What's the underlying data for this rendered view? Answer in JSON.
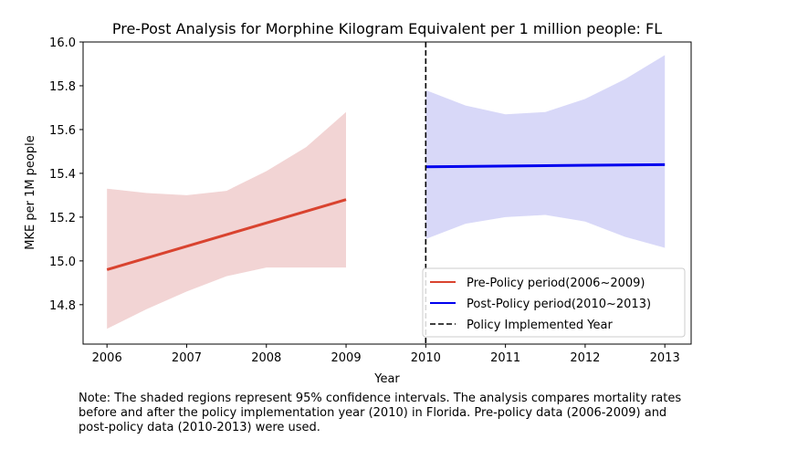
{
  "chart_data": {
    "type": "line",
    "title": "Pre-Post Analysis for Morphine Kilogram Equivalent per 1 million people: FL",
    "xlabel": "Year",
    "ylabel": "MKE per 1M people",
    "xlim": [
      2005.7,
      2013.33
    ],
    "ylim": [
      14.62,
      16.0
    ],
    "x_ticks": [
      "2006",
      "2007",
      "2008",
      "2009",
      "2010",
      "2011",
      "2012",
      "2013"
    ],
    "y_ticks": [
      "14.8",
      "15.0",
      "15.2",
      "15.4",
      "15.6",
      "15.8",
      "16.0"
    ],
    "grid": false,
    "legend_position": "lower-right",
    "series": [
      {
        "name": "Pre-Policy period(2006~2009)",
        "color": "#d9432f",
        "band_color": "#f2d4d4",
        "x": [
          2006,
          2009
        ],
        "y": [
          14.96,
          15.28
        ],
        "ci_x": [
          2006,
          2006.5,
          2007,
          2007.5,
          2008,
          2008.5,
          2009
        ],
        "ci_upper": [
          15.33,
          15.31,
          15.3,
          15.32,
          15.41,
          15.52,
          15.68
        ],
        "ci_lower": [
          14.69,
          14.78,
          14.86,
          14.93,
          14.97,
          14.97,
          14.97
        ]
      },
      {
        "name": "Post-Policy period(2010~2013)",
        "color": "#0000ee",
        "band_color": "#d8d8f8",
        "x": [
          2010,
          2013
        ],
        "y": [
          15.43,
          15.44
        ],
        "ci_x": [
          2010,
          2010.5,
          2011,
          2011.5,
          2012,
          2012.5,
          2013
        ],
        "ci_upper": [
          15.78,
          15.71,
          15.67,
          15.68,
          15.74,
          15.83,
          15.94
        ],
        "ci_lower": [
          15.1,
          15.17,
          15.2,
          15.21,
          15.18,
          15.11,
          15.06
        ]
      }
    ],
    "vline": {
      "name": "Policy Implemented Year",
      "x": 2010,
      "color": "#000000",
      "style": "dashed"
    }
  },
  "note": [
    "Note: The shaded regions represent 95% confidence intervals. The analysis compares mortality rates",
    "before and after the policy implementation year (2010) in Florida. Pre-policy data (2006-2009) and",
    "post-policy data (2010-2013) were used."
  ]
}
